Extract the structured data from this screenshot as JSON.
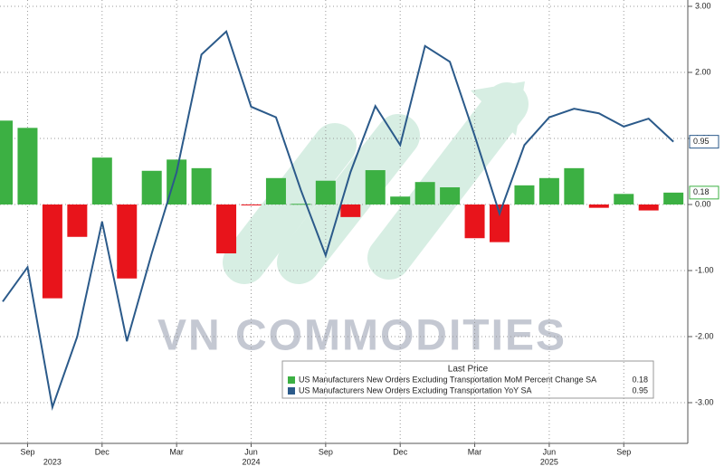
{
  "chart_data": {
    "type": "bar_line",
    "categories": [
      null,
      "Sep",
      null,
      null,
      "Dec",
      null,
      null,
      "Mar",
      null,
      null,
      "Jun",
      null,
      null,
      "Sep",
      null,
      null,
      "Dec",
      null,
      null,
      "Mar",
      null,
      null,
      "Jun",
      null,
      null,
      "Sep",
      null,
      null
    ],
    "years": [
      null,
      null,
      "2023",
      null,
      null,
      null,
      null,
      null,
      null,
      null,
      "2024",
      null,
      null,
      null,
      null,
      null,
      null,
      null,
      null,
      null,
      null,
      null,
      "2025",
      null,
      null,
      null,
      null,
      null
    ],
    "series": [
      {
        "name": "US Manufacturers New Orders Excluding Transportation MoM Percent Change SA",
        "type": "bar",
        "color": "#3cb043",
        "negative_color": "#e8141b",
        "values": [
          1.27,
          1.16,
          -1.42,
          -0.49,
          0.71,
          -1.12,
          0.51,
          0.68,
          0.55,
          -0.74,
          -0.01,
          0.4,
          0.01,
          0.36,
          -0.19,
          0.52,
          0.12,
          0.34,
          0.26,
          -0.51,
          -0.57,
          0.29,
          0.4,
          0.55,
          -0.05,
          0.16,
          -0.09,
          0.18
        ]
      },
      {
        "name": "US Manufacturers New Orders Excluding Transportation YoY SA",
        "type": "line",
        "color": "#2b5a8a",
        "values": [
          -1.47,
          -0.95,
          -3.07,
          -2.0,
          -0.26,
          -2.07,
          -0.74,
          0.49,
          2.27,
          2.62,
          1.48,
          1.32,
          0.22,
          -0.77,
          0.49,
          1.49,
          0.9,
          2.4,
          2.16,
          1.04,
          -0.14,
          0.9,
          1.32,
          1.45,
          1.38,
          1.18,
          1.3,
          0.95
        ]
      }
    ],
    "ylim": [
      -3.3,
      3.1
    ],
    "yticks": [
      {
        "value": 3,
        "label": "3.00"
      },
      {
        "value": 2,
        "label": "2.00"
      },
      {
        "value": 1,
        "label": "1.00"
      },
      {
        "value": 0,
        "label": "0.00"
      },
      {
        "value": -1,
        "label": "-1.00"
      },
      {
        "value": -2,
        "label": "-2.00"
      },
      {
        "value": -3,
        "label": "-3.00"
      }
    ],
    "grid": true,
    "legend_title": "Last Price",
    "legend": "bottom-right",
    "watermark": "VN COMMODITIES"
  }
}
